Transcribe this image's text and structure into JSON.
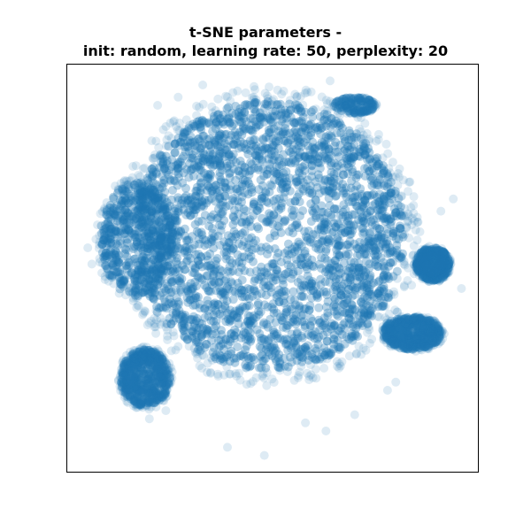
{
  "figure": {
    "title_line1": "t-SNE parameters -",
    "title_line2": "init: random, learning rate: 50, perplexity: 20"
  },
  "chart_data": {
    "type": "scatter",
    "title": "t-SNE parameters - init: random, learning rate: 50, perplexity: 20",
    "xlabel": "",
    "ylabel": "",
    "xticks": [],
    "yticks": [],
    "xlim": [
      0,
      100
    ],
    "ylim": [
      0,
      100
    ],
    "grid": false,
    "point_color": "#1f77b4",
    "point_alpha": 0.15,
    "clusters": [
      {
        "name": "main body",
        "center": [
          49,
          58
        ],
        "radius": [
          33,
          33
        ],
        "density": "very high"
      },
      {
        "name": "left lobe",
        "center": [
          17,
          57
        ],
        "radius": [
          9,
          14
        ],
        "density": "high"
      },
      {
        "name": "lower-left island",
        "center": [
          19,
          23
        ],
        "radius": [
          6,
          7
        ],
        "density": "high"
      },
      {
        "name": "right island",
        "center": [
          89,
          51
        ],
        "radius": [
          4,
          4
        ],
        "density": "high"
      },
      {
        "name": "lower-right lobe",
        "center": [
          84,
          34
        ],
        "radius": [
          7,
          4
        ],
        "density": "high"
      },
      {
        "name": "upper-right streak",
        "center": [
          70,
          90
        ],
        "radius": [
          5,
          2
        ],
        "density": "medium"
      }
    ],
    "outliers": [
      [
        22,
        90
      ],
      [
        27,
        92
      ],
      [
        33,
        95
      ],
      [
        64,
        96
      ],
      [
        16,
        75
      ],
      [
        15,
        70
      ],
      [
        14,
        68
      ],
      [
        5,
        55
      ],
      [
        6,
        51
      ],
      [
        94,
        67
      ],
      [
        91,
        64
      ],
      [
        96,
        45
      ],
      [
        76,
        38
      ],
      [
        80,
        22
      ],
      [
        78,
        20
      ],
      [
        39,
        6
      ],
      [
        48,
        4
      ],
      [
        20,
        13
      ],
      [
        24,
        15
      ],
      [
        35,
        28
      ],
      [
        70,
        14
      ],
      [
        63,
        10
      ],
      [
        58,
        12
      ]
    ]
  }
}
